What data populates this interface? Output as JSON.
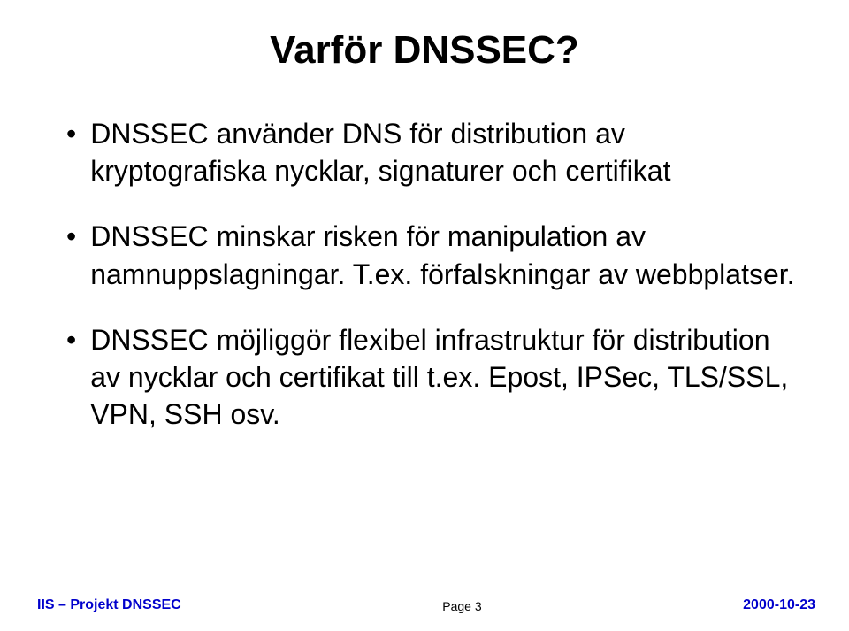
{
  "title": "Varför DNSSEC?",
  "bullets": [
    "DNSSEC använder DNS för distribution av kryptografiska nycklar, signaturer och certifikat",
    "DNSSEC minskar risken för manipulation av namnuppslagningar. T.ex. förfalskningar av webbplatser.",
    "DNSSEC möjliggör flexibel infrastruktur för distribution av nycklar och certifikat till t.ex. Epost, IPSec, TLS/SSL, VPN, SSH osv."
  ],
  "footer": {
    "left": "IIS – Projekt DNSSEC",
    "center": "Page 3",
    "right": "2000-10-23"
  },
  "style": {
    "title_color": "#000000",
    "title_fontsize": 44,
    "bullet_fontsize": 32,
    "bullet_color": "#000000",
    "footer_left_color": "#0101cc",
    "footer_right_color": "#0101cc",
    "footer_center_color": "#000000",
    "background_color": "#ffffff",
    "bullet_marker": "•"
  }
}
